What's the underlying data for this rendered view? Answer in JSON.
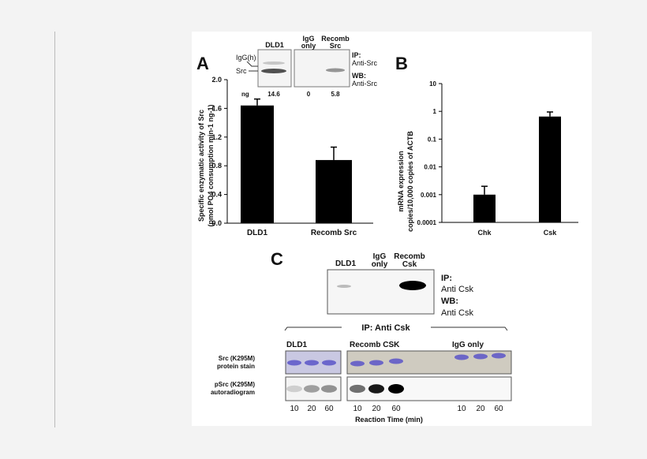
{
  "chart_data": [
    {
      "panel": "A",
      "type": "bar",
      "ylabel_line1": "Specific enzymatic activity of Src",
      "ylabel_line2": "(pmol PO4 consumption min-1 ng-1)",
      "categories": [
        "DLD1",
        "Recomb Src"
      ],
      "values": [
        1.64,
        0.88
      ],
      "error_upper": [
        1.73,
        1.06
      ],
      "ylim": [
        0,
        2.0
      ],
      "yticks": [
        "0.0",
        "0.4",
        "0.8",
        "1.2",
        "1.6",
        "2.0"
      ],
      "bar_color": "#000000",
      "inset_blot": {
        "lanes": [
          "DLD1",
          "IgG only",
          "Recomb Src"
        ],
        "lane_label_igg_1": "IgG",
        "lane_label_igg_2": "only",
        "lane_label_rec_1": "Recomb",
        "lane_label_rec_2": "Src",
        "band_labels": [
          "IgG(h)",
          "Src"
        ],
        "ng_label": "ng",
        "ng_values": [
          "14.6",
          "0",
          "5.8"
        ],
        "ip_label": "IP:",
        "ip_value": "Anti-Src",
        "wb_label": "WB:",
        "wb_value": "Anti-Src"
      }
    },
    {
      "panel": "B",
      "type": "bar",
      "ylabel_line1": "mRNA expression",
      "ylabel_line2": "copies/10,000 copies of ACTB",
      "categories": [
        "Chk",
        "Csk"
      ],
      "values": [
        0.001,
        0.65
      ],
      "error_upper": [
        0.002,
        0.95
      ],
      "yscale": "log",
      "ylim": [
        0.0001,
        10
      ],
      "yticks": [
        "0.0001",
        "0.001",
        "0.01",
        "0.1",
        "1",
        "10"
      ],
      "bar_color": "#000000"
    }
  ],
  "panel_c": {
    "letter": "C",
    "blot_lanes": [
      "DLD1",
      "IgG",
      "only",
      "Recomb",
      "Csk"
    ],
    "ip_label": "IP:",
    "ip_value": "Anti Csk",
    "wb_label": "WB:",
    "wb_value": "Anti Csk",
    "bracket_label": "IP: Anti Csk",
    "groups": [
      "DLD1",
      "Recomb CSK",
      "IgG only"
    ],
    "row_labels": [
      "Src (K295M)",
      "protein stain",
      "pSrc (K295M)",
      "autoradiogram"
    ],
    "times": [
      "10",
      "20",
      "60"
    ],
    "xlabel": "Reaction Time (min)",
    "stain_color": "#5a55c8"
  },
  "panel_letters": [
    "A",
    "B"
  ]
}
